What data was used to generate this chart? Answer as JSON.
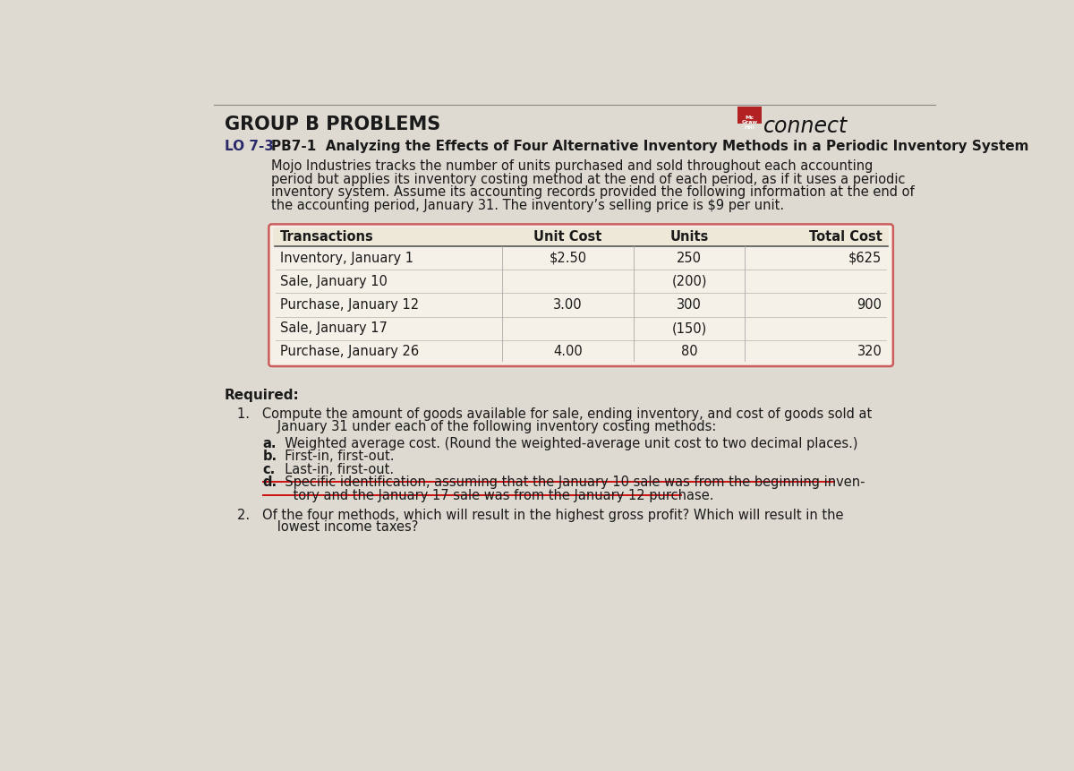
{
  "page_bg": "#dedad2",
  "title_header": "GROUP B PROBLEMS",
  "lo_label": "LO 7-3",
  "problem_title": "PB7-1  Analyzing the Effects of Four Alternative Inventory Methods in a Periodic Inventory System",
  "intro_lines": [
    "Mojo Industries tracks the number of units purchased and sold throughout each accounting",
    "period but applies its inventory costing method at the end of each period, as if it uses a periodic",
    "inventory system. Assume its accounting records provided the following information at the end of",
    "the accounting period, January 31. The inventory’s selling price is $9 per unit."
  ],
  "table_headers": [
    "Transactions",
    "Unit Cost",
    "Units",
    "Total Cost"
  ],
  "table_rows": [
    [
      "Inventory, January 1",
      "$2.50",
      "250",
      "$625"
    ],
    [
      "Sale, January 10",
      "",
      "(200)",
      ""
    ],
    [
      "Purchase, January 12",
      "3.00",
      "300",
      "900"
    ],
    [
      "Sale, January 17",
      "",
      "(150)",
      ""
    ],
    [
      "Purchase, January 26",
      "4.00",
      "80",
      "320"
    ]
  ],
  "required_label": "Required:",
  "req1_line1": "1.   Compute the amount of goods available for sale, ending inventory, and cost of goods sold at",
  "req1_line2": "      January 31 under each of the following inventory costing methods:",
  "sub_a": "a.   Weighted average cost. (Round the weighted-average unit cost to two decimal places.)",
  "sub_b": "b.   First-in, first-out.",
  "sub_c": "c.   Last-in, first-out.",
  "sub_d_1": "d.   Specific identification, assuming that the January 10 sale was from the beginning inven-",
  "sub_d_2": "       tory and the January 17 sale was from the January 12 purchase.",
  "req2_line1": "2.   Of the four methods, which will result in the highest gross profit? Which will result in the",
  "req2_line2": "      lowest income taxes?",
  "connect_text": "connect",
  "mc_box_color": "#b22222",
  "header_line_color": "#888888",
  "table_border_color": "#cd5c5c",
  "table_bg": "#f5f1e8",
  "text_color": "#1a1a1a",
  "lo_color": "#2a2a6a",
  "strikethrough_color": "#cc0000",
  "title_color": "#1a1a1a",
  "header_underline_color": "#555555",
  "col_divider_color": "#aaaaaa"
}
